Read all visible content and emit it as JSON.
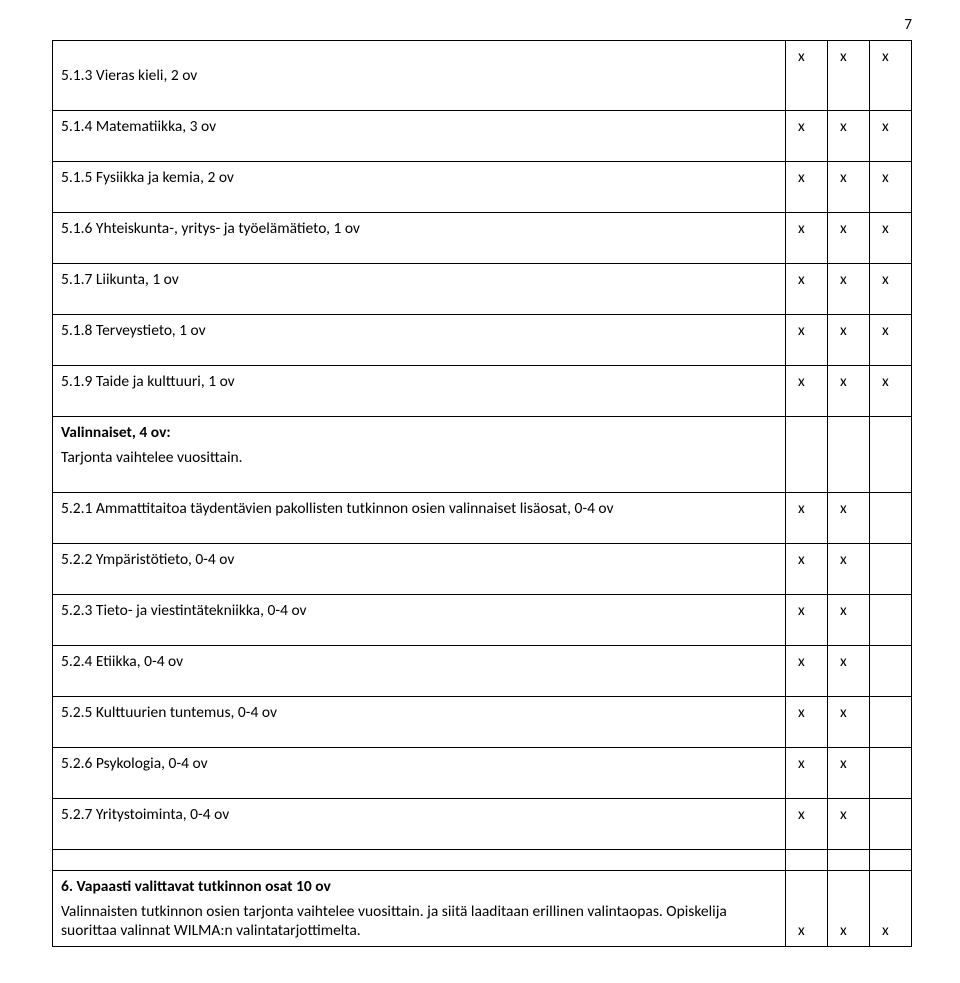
{
  "page": {
    "number": "7"
  },
  "mark": "x",
  "rows": {
    "r1": {
      "label": "5.1.3 Vieras kieli, 2 ov"
    },
    "r2": {
      "label": "5.1.4 Matematiikka, 3 ov"
    },
    "r3": {
      "label": "5.1.5 Fysiikka ja kemia, 2 ov"
    },
    "r4": {
      "label": "5.1.6 Yhteiskunta-, yritys- ja työelämätieto, 1 ov"
    },
    "r5": {
      "label": "5.1.7 Liikunta, 1 ov"
    },
    "r6": {
      "label": "5.1.8 Terveystieto, 1 ov"
    },
    "r7": {
      "label": "5.1.9 Taide ja kulttuuri, 1 ov"
    },
    "valinnaiset_title": "Valinnaiset, 4 ov:",
    "valinnaiset_sub": "Tarjonta vaihtelee vuosittain.",
    "r8": {
      "label": "5.2.1 Ammattitaitoa täydentävien pakollisten tutkinnon osien valinnaiset lisäosat, 0-4 ov"
    },
    "r9": {
      "label": "5.2.2 Ympäristötieto, 0-4 ov"
    },
    "r10": {
      "label": "5.2.3 Tieto- ja viestintätekniikka, 0-4 ov"
    },
    "r11": {
      "label": "5.2.4 Etiikka, 0-4 ov"
    },
    "r12": {
      "label": "5.2.5 Kulttuurien tuntemus, 0-4 ov"
    },
    "r13": {
      "label": "5.2.6 Psykologia, 0-4 ov"
    },
    "r14": {
      "label": "5.2.7 Yritystoiminta, 0-4 ov"
    },
    "section6_title": "6. Vapaasti valittavat tutkinnon osat 10 ov",
    "section6_body": "Valinnaisten tutkinnon osien tarjonta vaihtelee vuosittain. ja siitä laaditaan erillinen valintaopas. Opiskelija suorittaa valinnat WILMA:n valintatarjottimelta."
  }
}
